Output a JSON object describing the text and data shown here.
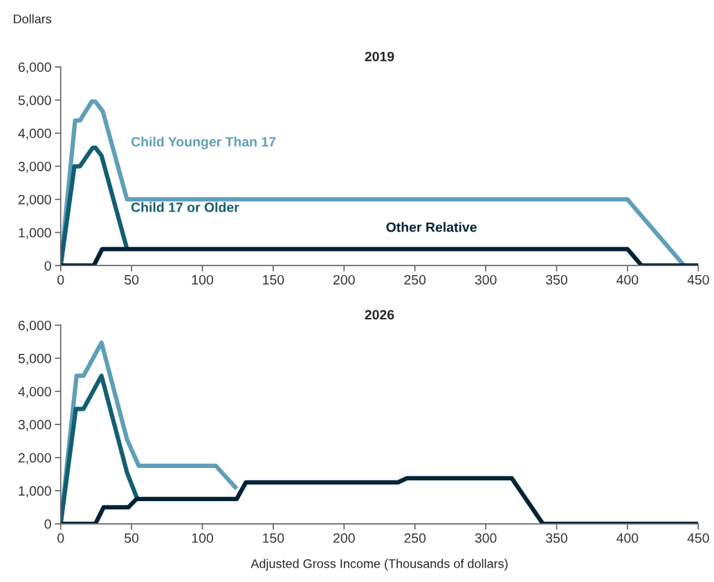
{
  "chart_data": [
    {
      "type": "line",
      "title": "2019",
      "ylabel": "Dollars",
      "legend": false,
      "grid": false,
      "xlim": [
        0,
        450
      ],
      "xticks": [
        0,
        50,
        100,
        150,
        200,
        250,
        300,
        350,
        400,
        450
      ],
      "ylim": [
        0,
        6000
      ],
      "yticks": [
        {
          "value": 0,
          "label": "0"
        },
        {
          "value": 1000,
          "label": "1,000"
        },
        {
          "value": 2000,
          "label": "2,000"
        },
        {
          "value": 3000,
          "label": "3,000"
        },
        {
          "value": 4000,
          "label": "4,000"
        },
        {
          "value": 5000,
          "label": "5,000"
        },
        {
          "value": 6000,
          "label": "6,000"
        }
      ],
      "series": [
        {
          "name": "Child Younger Than 17",
          "color": "#5f9fb8",
          "x": [
            0,
            10.2,
            13.6,
            22,
            24.5,
            29.7,
            46.8,
            400,
            440
          ],
          "values": [
            0,
            4380,
            4380,
            4960,
            4950,
            4660,
            2000,
            2000,
            0
          ]
        },
        {
          "name": "Child 17 or Older",
          "color": "#135e72",
          "x": [
            0,
            9.7,
            13.6,
            22.4,
            24.5,
            28.8,
            46.8
          ],
          "values": [
            0,
            3000,
            3000,
            3550,
            3560,
            3320,
            500
          ]
        },
        {
          "name": "Other Relative",
          "color": "#022435",
          "x": [
            0,
            23.4,
            29.3,
            400,
            410,
            450
          ],
          "values": [
            0,
            0,
            500,
            500,
            0,
            0
          ]
        }
      ]
    },
    {
      "type": "line",
      "title": "2026",
      "xlabel": "Adjusted Gross Income (Thousands of dollars)",
      "legend": false,
      "grid": false,
      "xlim": [
        0,
        450
      ],
      "xticks": [
        0,
        50,
        100,
        150,
        200,
        250,
        300,
        350,
        400,
        450
      ],
      "ylim": [
        0,
        6000
      ],
      "yticks": [
        {
          "value": 0,
          "label": "0"
        },
        {
          "value": 1000,
          "label": "1,000"
        },
        {
          "value": 2000,
          "label": "2,000"
        },
        {
          "value": 3000,
          "label": "3,000"
        },
        {
          "value": 4000,
          "label": "4,000"
        },
        {
          "value": 5000,
          "label": "5,000"
        },
        {
          "value": 6000,
          "label": "6,000"
        }
      ],
      "series": [
        {
          "color": "#5f9fb8",
          "x": [
            0,
            11.2,
            16.1,
            28.8,
            46.8,
            55.1,
            109.5,
            124.2
          ],
          "values": [
            0,
            4470,
            4470,
            5470,
            2550,
            1750,
            1750,
            1060
          ]
        },
        {
          "color": "#135e72",
          "x": [
            0,
            10.7,
            16.1,
            28.8,
            46.8,
            54.1
          ],
          "values": [
            0,
            3470,
            3470,
            4470,
            1550,
            750
          ]
        },
        {
          "color": "#022435",
          "x": [
            0,
            24.5,
            30.3,
            47.8,
            53.5,
            124.2,
            130.7,
            238,
            244.3,
            318.4,
            340.3,
            450
          ],
          "values": [
            0,
            0,
            500,
            500,
            750,
            750,
            1250,
            1250,
            1375,
            1375,
            0,
            0
          ]
        }
      ]
    }
  ]
}
